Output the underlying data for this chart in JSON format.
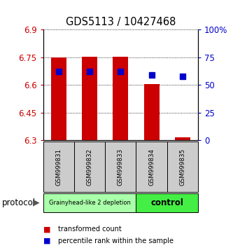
{
  "title": "GDS5113 / 10427468",
  "samples": [
    "GSM999831",
    "GSM999832",
    "GSM999833",
    "GSM999834",
    "GSM999835"
  ],
  "bar_bottoms": [
    6.3,
    6.3,
    6.3,
    6.3,
    6.3
  ],
  "bar_tops": [
    6.75,
    6.755,
    6.755,
    6.605,
    6.315
  ],
  "blue_values": [
    6.672,
    6.672,
    6.672,
    6.655,
    6.648
  ],
  "ylim": [
    6.3,
    6.9
  ],
  "yticks_left": [
    6.3,
    6.45,
    6.6,
    6.75,
    6.9
  ],
  "yticks_right": [
    0,
    25,
    50,
    75,
    100
  ],
  "yticks_right_labels": [
    "0",
    "25",
    "50",
    "75",
    "100%"
  ],
  "bar_color": "#cc0000",
  "blue_color": "#0000cc",
  "group1_label": "Grainyhead-like 2 depletion",
  "group2_label": "control",
  "group1_color": "#aaffaa",
  "group2_color": "#44ee44",
  "group1_indices": [
    0,
    1,
    2
  ],
  "group2_indices": [
    3,
    4
  ],
  "protocol_label": "protocol",
  "legend_red": "transformed count",
  "legend_blue": "percentile rank within the sample",
  "bar_width": 0.5,
  "bg_color": "#ffffff",
  "tick_label_color_left": "#cc0000",
  "tick_label_color_right": "#0000cc",
  "blue_marker_size": 6
}
